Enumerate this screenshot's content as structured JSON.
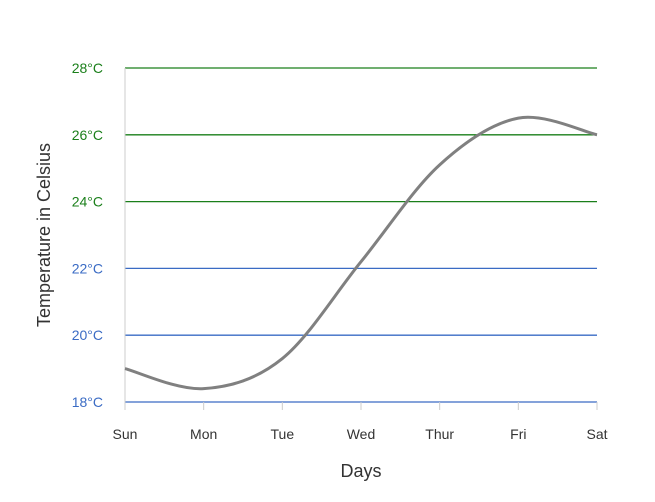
{
  "chart_data": {
    "type": "line",
    "title": "",
    "xlabel": "Days",
    "ylabel": "Temperature in Celsius",
    "categories": [
      "Sun",
      "Mon",
      "Tue",
      "Wed",
      "Thur",
      "Fri",
      "Sat"
    ],
    "series": [
      {
        "values": [
          19,
          18.4,
          19.3,
          22.2,
          25.1,
          26.5,
          26
        ]
      }
    ],
    "ylim": [
      18,
      28
    ],
    "y_ticks": [
      {
        "value": 18,
        "label": "18°C",
        "color": "#3a6bc4"
      },
      {
        "value": 20,
        "label": "20°C",
        "color": "#3a6bc4"
      },
      {
        "value": 22,
        "label": "22°C",
        "color": "#3a6bc4"
      },
      {
        "value": 24,
        "label": "24°C",
        "color": "#1a7f1a"
      },
      {
        "value": 26,
        "label": "26°C",
        "color": "#1a7f1a"
      },
      {
        "value": 28,
        "label": "28°C",
        "color": "#1a7f1a"
      }
    ],
    "grid": true,
    "line_color": "#808080",
    "legend": "none"
  }
}
